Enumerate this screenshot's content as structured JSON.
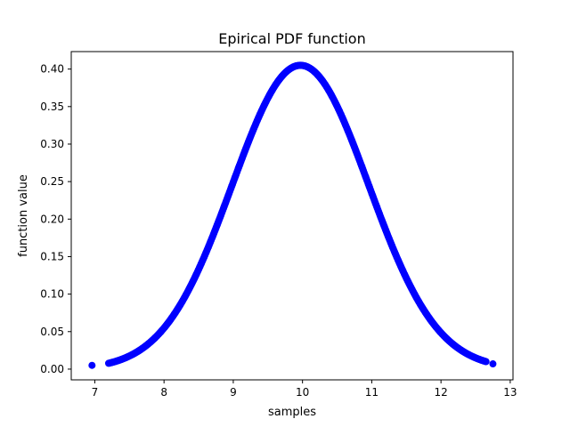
{
  "chart_data": {
    "type": "scatter",
    "title": "Epirical PDF function",
    "xlabel": "samples",
    "ylabel": "function value",
    "xlim": [
      6.66,
      13.04
    ],
    "ylim": [
      -0.0143,
      0.4233
    ],
    "xticks": [
      7,
      8,
      9,
      10,
      11,
      12,
      13
    ],
    "yticks": [
      0.0,
      0.05,
      0.1,
      0.15,
      0.2,
      0.25,
      0.3,
      0.35,
      0.4
    ],
    "ytick_labels": [
      "0.00",
      "0.05",
      "0.10",
      "0.15",
      "0.20",
      "0.25",
      "0.30",
      "0.35",
      "0.40"
    ],
    "grid": false,
    "marker_color": "#0000ff",
    "series": [
      {
        "curve": "normal",
        "mean": 9.97,
        "std": 0.985,
        "x_min": 7.2,
        "x_max": 12.65,
        "x_step": 0.01,
        "isolated_points": [
          {
            "x": 6.96,
            "y": 0.005
          },
          {
            "x": 12.75,
            "y": 0.007
          }
        ]
      }
    ]
  }
}
